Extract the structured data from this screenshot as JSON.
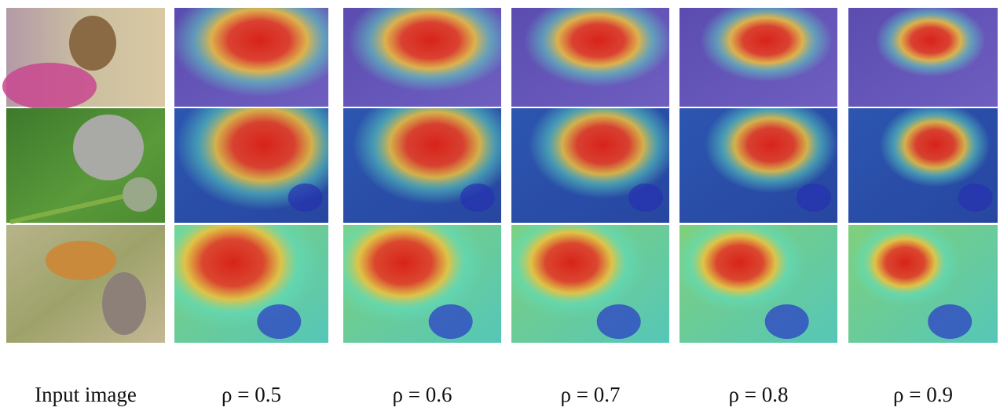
{
  "figure": {
    "captions": [
      "Input image",
      "ρ = 0.5",
      "ρ = 0.6",
      "ρ = 0.7",
      "ρ = 0.8",
      "ρ = 0.9"
    ]
  }
}
